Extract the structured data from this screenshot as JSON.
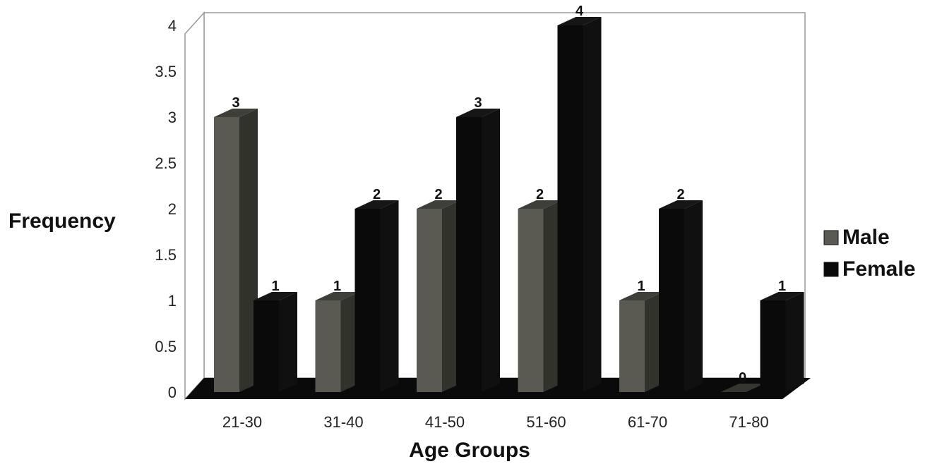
{
  "chart_data": {
    "type": "bar",
    "title": "",
    "xlabel": "Age Groups",
    "ylabel": "Frequency",
    "categories": [
      "21-30",
      "31-40",
      "41-50",
      "51-60",
      "61-70",
      "71-80"
    ],
    "series": [
      {
        "name": "Male",
        "values": [
          3,
          1,
          2,
          2,
          1,
          0
        ],
        "color": "#5a5a52"
      },
      {
        "name": "Female",
        "values": [
          1,
          2,
          3,
          4,
          2,
          1
        ],
        "color": "#0a0a0a"
      }
    ],
    "data_labels": {
      "Male": [
        "3",
        "1",
        "2",
        "2",
        "1",
        "0"
      ],
      "Female": [
        "1",
        "2",
        "3",
        "4",
        "2",
        "1"
      ]
    },
    "ylim": [
      0,
      4
    ],
    "yticks": [
      "0",
      "0.5",
      "1",
      "1.5",
      "2",
      "2.5",
      "3",
      "3.5",
      "4"
    ],
    "ytick_values": [
      0,
      0.5,
      1,
      1.5,
      2,
      2.5,
      3,
      3.5,
      4
    ],
    "legend_position": "right",
    "style": "3d-clustered",
    "grid": false
  }
}
